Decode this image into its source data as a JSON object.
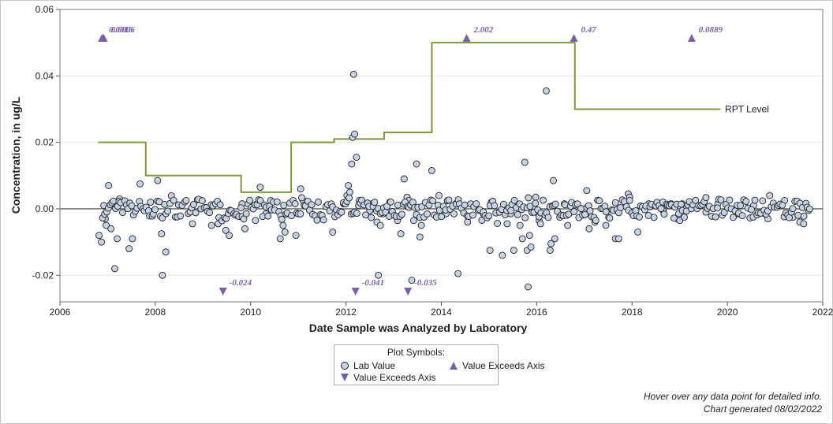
{
  "chart_data": {
    "type": "scatter",
    "ylabel": "Concentration, in ug/L",
    "xlabel": "Date Sample was Analyzed by Laboratory",
    "xlim": [
      2006,
      2022
    ],
    "ylim": [
      -0.028,
      0.06
    ],
    "x_ticks": [
      2006,
      2008,
      2010,
      2012,
      2014,
      2016,
      2018,
      2020,
      2022
    ],
    "y_ticks": [
      -0.02,
      0.0,
      0.02,
      0.04,
      0.06
    ],
    "y_tick_labels": [
      "-0.02",
      "0.00",
      "0.02",
      "0.04",
      "0.06"
    ],
    "grid": "horizontal",
    "reference_line": 0,
    "rpt_level": {
      "label": "RPT Level",
      "color": "#7a9a3a",
      "steps": [
        {
          "from": 2006.8,
          "to": 2007.8,
          "value": 0.02
        },
        {
          "from": 2007.8,
          "to": 2009.8,
          "value": 0.01
        },
        {
          "from": 2009.8,
          "to": 2010.85,
          "value": 0.005
        },
        {
          "from": 2010.85,
          "to": 2011.75,
          "value": 0.02
        },
        {
          "from": 2011.75,
          "to": 2012.8,
          "value": 0.021
        },
        {
          "from": 2012.8,
          "to": 2013.8,
          "value": 0.023
        },
        {
          "from": 2013.8,
          "to": 2016.8,
          "value": 0.05
        },
        {
          "from": 2016.8,
          "to": 2019.85,
          "value": 0.03
        }
      ]
    },
    "lab_values": [
      [
        2006.82,
        -0.008
      ],
      [
        2006.87,
        -0.01
      ],
      [
        2006.92,
        0.001
      ],
      [
        2006.95,
        -0.003
      ],
      [
        2006.97,
        -0.005
      ],
      [
        2007.02,
        0.007
      ],
      [
        2007.07,
        -0.006
      ],
      [
        2007.15,
        -0.018
      ],
      [
        2007.2,
        -0.009
      ],
      [
        2007.25,
        0.003
      ],
      [
        2007.45,
        -0.012
      ],
      [
        2007.52,
        -0.009
      ],
      [
        2007.68,
        0.0075
      ],
      [
        2007.9,
        0.002
      ],
      [
        2008.05,
        0.0085
      ],
      [
        2008.13,
        -0.0075
      ],
      [
        2008.15,
        -0.02
      ],
      [
        2008.22,
        -0.013
      ],
      [
        2008.78,
        -0.0045
      ],
      [
        2009.18,
        -0.005
      ],
      [
        2009.32,
        -0.0045
      ],
      [
        2009.48,
        -0.0065
      ],
      [
        2009.55,
        -0.008
      ],
      [
        2009.82,
        0.0015
      ],
      [
        2009.88,
        -0.006
      ],
      [
        2010.1,
        -0.0035
      ],
      [
        2010.2,
        0.0065
      ],
      [
        2010.32,
        -0.0015
      ],
      [
        2010.42,
        0.0025
      ],
      [
        2010.62,
        -0.009
      ],
      [
        2010.68,
        -0.005
      ],
      [
        2010.72,
        -0.007
      ],
      [
        2010.95,
        -0.008
      ],
      [
        2011.05,
        0.006
      ],
      [
        2011.1,
        0.0025
      ],
      [
        2011.72,
        -0.007
      ],
      [
        2011.95,
        0.0015
      ],
      [
        2012.02,
        0.004
      ],
      [
        2012.05,
        0.007
      ],
      [
        2012.08,
        0.005
      ],
      [
        2012.12,
        0.0135
      ],
      [
        2012.14,
        0.0215
      ],
      [
        2012.16,
        0.0405
      ],
      [
        2012.18,
        0.0225
      ],
      [
        2012.22,
        0.0155
      ],
      [
        2012.28,
        0.0025
      ],
      [
        2012.5,
        -0.0005
      ],
      [
        2012.55,
        0.0015
      ],
      [
        2012.65,
        -0.004
      ],
      [
        2012.68,
        -0.02
      ],
      [
        2012.72,
        -0.005
      ],
      [
        2012.78,
        -0.0015
      ],
      [
        2012.92,
        0.002
      ],
      [
        2013.08,
        -0.0035
      ],
      [
        2013.15,
        -0.0075
      ],
      [
        2013.22,
        0.009
      ],
      [
        2013.28,
        0.0035
      ],
      [
        2013.32,
        0.0025
      ],
      [
        2013.38,
        -0.0215
      ],
      [
        2013.42,
        -0.0035
      ],
      [
        2013.48,
        0.0135
      ],
      [
        2013.55,
        -0.0085
      ],
      [
        2013.58,
        -0.005
      ],
      [
        2013.8,
        0.0115
      ],
      [
        2013.95,
        0.004
      ],
      [
        2014.05,
        -0.0005
      ],
      [
        2014.1,
        -0.0015
      ],
      [
        2014.3,
        0.0015
      ],
      [
        2014.35,
        -0.0195
      ],
      [
        2014.55,
        -0.004
      ],
      [
        2014.88,
        -0.0015
      ],
      [
        2015.02,
        -0.0125
      ],
      [
        2015.05,
        0.002
      ],
      [
        2015.28,
        -0.014
      ],
      [
        2015.38,
        -0.0045
      ],
      [
        2015.45,
        -0.0015
      ],
      [
        2015.52,
        -0.0125
      ],
      [
        2015.58,
        0.0005
      ],
      [
        2015.65,
        -0.005
      ],
      [
        2015.7,
        -0.009
      ],
      [
        2015.75,
        0.014
      ],
      [
        2015.8,
        -0.0125
      ],
      [
        2015.82,
        -0.0235
      ],
      [
        2015.85,
        -0.008
      ],
      [
        2015.88,
        -0.0115
      ],
      [
        2015.92,
        0.0005
      ],
      [
        2015.98,
        0.0035
      ],
      [
        2016.05,
        -0.0035
      ],
      [
        2016.08,
        -0.0045
      ],
      [
        2016.2,
        0.0355
      ],
      [
        2016.28,
        -0.0125
      ],
      [
        2016.3,
        -0.0105
      ],
      [
        2016.35,
        0.0085
      ],
      [
        2016.38,
        -0.009
      ],
      [
        2016.58,
        0.0015
      ],
      [
        2016.65,
        -0.005
      ],
      [
        2017.05,
        0.0055
      ],
      [
        2017.1,
        -0.006
      ],
      [
        2017.22,
        -0.004
      ],
      [
        2017.45,
        -0.005
      ],
      [
        2017.65,
        -0.009
      ],
      [
        2017.72,
        -0.009
      ],
      [
        2017.92,
        0.0045
      ],
      [
        2017.95,
        0.0035
      ],
      [
        2018.12,
        -0.007
      ],
      [
        2018.35,
        0.0015
      ],
      [
        2018.65,
        -0.0005
      ],
      [
        2018.82,
        0.0015
      ],
      [
        2018.95,
        -0.003
      ],
      [
        2019.0,
        -0.0035
      ],
      [
        2019.05,
        0.0015
      ],
      [
        2019.35,
        0.0005
      ],
      [
        2019.55,
        -0.001
      ],
      [
        2019.8,
        0.0015
      ],
      [
        2020.22,
        -0.0015
      ],
      [
        2020.55,
        0.001
      ],
      [
        2020.78,
        -0.0015
      ],
      [
        2020.85,
        -0.003
      ],
      [
        2021.2,
        0.0025
      ],
      [
        2021.38,
        -0.0025
      ],
      [
        2021.52,
        -0.004
      ],
      [
        2021.6,
        -0.0045
      ],
      [
        2021.62,
        0.001
      ],
      [
        2021.7,
        -0.0005
      ]
    ],
    "exceeds_above": [
      {
        "x": 2006.88,
        "label": "0.0016"
      },
      {
        "x": 2006.92,
        "label": "0.0006"
      },
      {
        "x": 2014.53,
        "label": "2.002"
      },
      {
        "x": 2016.78,
        "label": "0.47"
      },
      {
        "x": 2019.25,
        "label": "0.0889"
      }
    ],
    "exceeds_below": [
      {
        "x": 2009.42,
        "label": "-0.024"
      },
      {
        "x": 2012.2,
        "label": "-0.041"
      },
      {
        "x": 2013.3,
        "label": "-0.035"
      }
    ],
    "colors": {
      "lab_fill": "#c6d3e6",
      "lab_stroke": "#222222",
      "exceed": "#7b5ea7",
      "rpt": "#7a9a3a"
    }
  },
  "legend": {
    "title": "Plot Symbols:",
    "lab_value": "Lab Value",
    "exceeds_up": "Value Exceeds Axis",
    "exceeds_down": "Value Exceeds Axis"
  },
  "footnote": {
    "line1": "Hover over any data point for detailed info.",
    "line2": "Chart generated 08/02/2022"
  }
}
